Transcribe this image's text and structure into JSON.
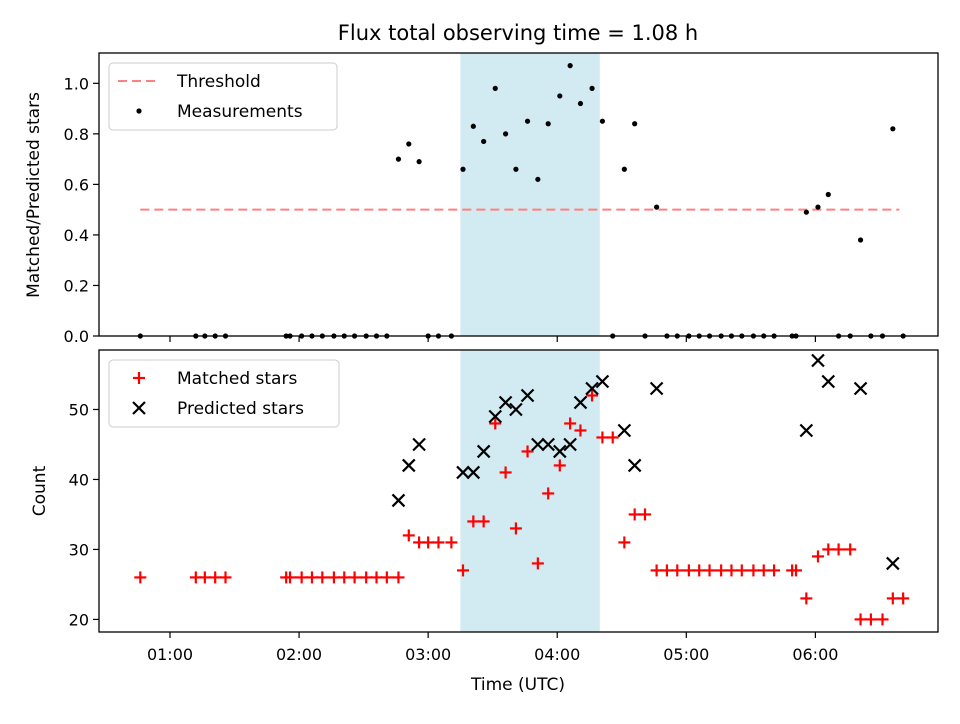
{
  "figure": {
    "title": "Flux total observing time = 1.08 h"
  },
  "chart_data": [
    {
      "type": "scatter",
      "ylabel": "Matched/Predicted stars",
      "ylim": [
        0,
        1.12
      ],
      "yticks": [
        "0.0",
        "0.2",
        "0.4",
        "0.6",
        "0.8",
        "1.0"
      ],
      "ytick_values": [
        0,
        0.2,
        0.4,
        0.6,
        0.8,
        1.0
      ],
      "x_unit": "hours UTC",
      "xlim": [
        0.45,
        6.95
      ],
      "xtick_values": [
        1,
        2,
        3,
        4,
        5,
        6
      ],
      "highlight_span": {
        "x": [
          3.25,
          4.33
        ],
        "color": "#add8e6"
      },
      "legend": {
        "position": "top-left",
        "entries": [
          "Threshold",
          "Measurements"
        ]
      },
      "threshold": {
        "name": "Threshold",
        "x": [
          0.77,
          6.65
        ],
        "y": 0.5,
        "color": "#ff8080",
        "style": "dashed"
      },
      "series": [
        {
          "name": "Measurements",
          "color": "#000000",
          "x": [
            0.77,
            1.2,
            1.27,
            1.35,
            1.43,
            1.9,
            1.93,
            2.02,
            2.1,
            2.18,
            2.27,
            2.35,
            2.43,
            2.52,
            2.6,
            2.68,
            2.77,
            2.85,
            2.93,
            3.0,
            3.08,
            3.18,
            3.27,
            3.35,
            3.43,
            3.52,
            3.6,
            3.68,
            3.77,
            3.85,
            3.93,
            4.02,
            4.1,
            4.18,
            4.27,
            4.35,
            4.43,
            4.52,
            4.6,
            4.68,
            4.77,
            4.85,
            4.93,
            5.02,
            5.1,
            5.18,
            5.27,
            5.35,
            5.43,
            5.52,
            5.6,
            5.68,
            5.82,
            5.85,
            5.93,
            6.02,
            6.1,
            6.18,
            6.27,
            6.35,
            6.43,
            6.52,
            6.6,
            6.68
          ],
          "y": [
            0,
            0,
            0,
            0,
            0,
            0,
            0,
            0,
            0,
            0,
            0,
            0,
            0,
            0,
            0,
            0,
            0.7,
            0.76,
            0.69,
            0,
            0,
            0,
            0.66,
            0.83,
            0.77,
            0.98,
            0.8,
            0.66,
            0.85,
            0.62,
            0.84,
            0.95,
            1.07,
            0.92,
            0.98,
            0.85,
            0,
            0.66,
            0.84,
            0,
            0.51,
            0,
            0,
            0,
            0,
            0,
            0,
            0,
            0,
            0,
            0,
            0,
            0,
            0,
            0.49,
            0.51,
            0.56,
            0,
            0,
            0.38,
            0,
            0,
            0.82,
            0
          ]
        }
      ]
    },
    {
      "type": "scatter",
      "xlabel": "Time (UTC)",
      "ylabel": "Count",
      "ylim": [
        18.2,
        58.5
      ],
      "yticks": [
        "20",
        "30",
        "40",
        "50"
      ],
      "ytick_values": [
        20,
        30,
        40,
        50
      ],
      "xlim": [
        0.45,
        6.95
      ],
      "xticks": [
        "01:00",
        "02:00",
        "03:00",
        "04:00",
        "05:00",
        "06:00"
      ],
      "xtick_values": [
        1,
        2,
        3,
        4,
        5,
        6
      ],
      "highlight_span": {
        "x": [
          3.25,
          4.33
        ],
        "color": "#add8e6"
      },
      "legend": {
        "position": "top-left",
        "entries": [
          "Matched stars",
          "Predicted stars"
        ]
      },
      "series": [
        {
          "name": "Matched stars",
          "marker": "+",
          "color": "#ff0000",
          "x": [
            0.77,
            1.2,
            1.27,
            1.35,
            1.43,
            1.9,
            1.93,
            2.02,
            2.1,
            2.18,
            2.27,
            2.35,
            2.43,
            2.52,
            2.6,
            2.68,
            2.77,
            2.85,
            2.93,
            3.0,
            3.08,
            3.18,
            3.27,
            3.35,
            3.43,
            3.52,
            3.6,
            3.68,
            3.77,
            3.85,
            3.93,
            4.02,
            4.1,
            4.18,
            4.27,
            4.35,
            4.43,
            4.52,
            4.6,
            4.68,
            4.77,
            4.85,
            4.93,
            5.02,
            5.1,
            5.18,
            5.27,
            5.35,
            5.43,
            5.52,
            5.6,
            5.68,
            5.82,
            5.85,
            5.93,
            6.02,
            6.1,
            6.18,
            6.27,
            6.35,
            6.43,
            6.52,
            6.6,
            6.68
          ],
          "y": [
            26,
            26,
            26,
            26,
            26,
            26,
            26,
            26,
            26,
            26,
            26,
            26,
            26,
            26,
            26,
            26,
            26,
            32,
            31,
            31,
            31,
            31,
            27,
            34,
            34,
            48,
            41,
            33,
            44,
            28,
            38,
            42,
            48,
            47,
            52,
            46,
            46,
            31,
            35,
            35,
            27,
            27,
            27,
            27,
            27,
            27,
            27,
            27,
            27,
            27,
            27,
            27,
            27,
            27,
            23,
            29,
            30,
            30,
            30,
            20,
            20,
            20,
            23,
            23
          ]
        },
        {
          "name": "Predicted stars",
          "marker": "x",
          "color": "#000000",
          "x": [
            2.77,
            2.85,
            2.93,
            3.27,
            3.35,
            3.43,
            3.52,
            3.6,
            3.68,
            3.77,
            3.85,
            3.93,
            4.02,
            4.1,
            4.18,
            4.27,
            4.35,
            4.52,
            4.6,
            4.77,
            5.93,
            6.02,
            6.1,
            6.35,
            6.6
          ],
          "y": [
            37,
            42,
            45,
            41,
            41,
            44,
            49,
            51,
            50,
            52,
            45,
            45,
            44,
            45,
            51,
            53,
            54,
            47,
            42,
            53,
            47,
            57,
            54,
            53,
            28
          ]
        }
      ]
    }
  ]
}
